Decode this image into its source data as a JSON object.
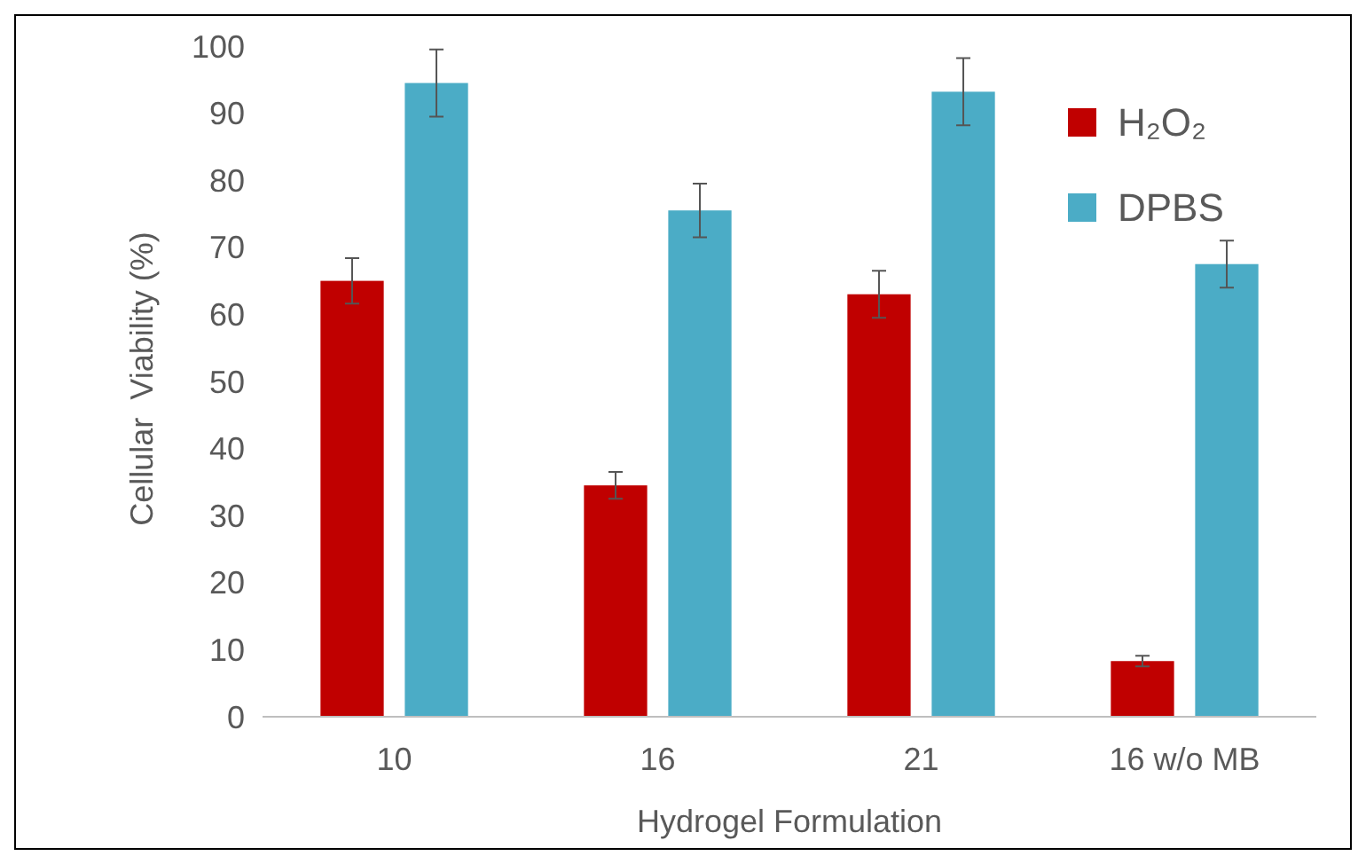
{
  "chart_data": {
    "type": "bar",
    "xlabel": "Hydrogel Formulation",
    "ylabel": "Cellular  Viability (%)",
    "categories": [
      "10",
      "16",
      "21",
      "16 w/o MB"
    ],
    "series": [
      {
        "name": "H₂O₂",
        "color": "#c00000",
        "values": [
          65,
          34.5,
          63,
          8.3
        ],
        "errors": [
          3.4,
          2,
          3.5,
          0.8
        ]
      },
      {
        "name": "DPBS",
        "color": "#4bacc6",
        "values": [
          94.5,
          75.5,
          93.2,
          67.5
        ],
        "errors": [
          5,
          4,
          5,
          3.5
        ]
      }
    ],
    "ylim": [
      0,
      100
    ],
    "yticks": [
      0,
      10,
      20,
      30,
      40,
      50,
      60,
      70,
      80,
      90,
      100
    ],
    "grid": false,
    "legend": "top right"
  }
}
